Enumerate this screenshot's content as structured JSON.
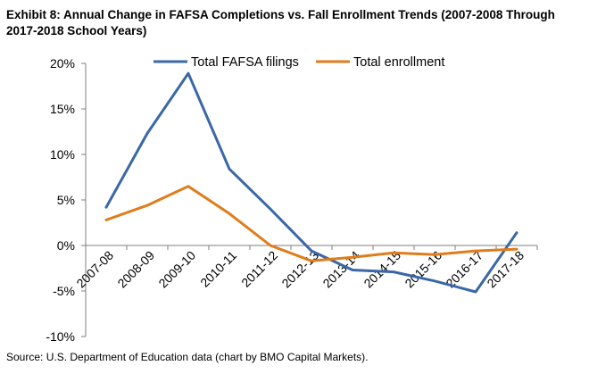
{
  "title": "Exhibit 8: Annual Change in FAFSA Completions vs. Fall Enrollment Trends (2007-2008 Through 2017-2018 School Years)",
  "source": "Source: U.S. Department of Education data (chart by BMO Capital Markets).",
  "chart_data": {
    "type": "line",
    "categories": [
      "2007-08",
      "2008-09",
      "2009-10",
      "2010-11",
      "2011-12",
      "2012-13",
      "2013-14",
      "2014-15",
      "2015-16",
      "2016-17",
      "2017-18"
    ],
    "series": [
      {
        "name": "Total FAFSA filings",
        "color": "#3A67A8",
        "values": [
          4.2,
          12.3,
          18.9,
          8.4,
          4.0,
          -0.6,
          -2.7,
          -2.9,
          -3.9,
          -5.1,
          1.4
        ]
      },
      {
        "name": "Total enrollment",
        "color": "#E07C1A",
        "values": [
          2.8,
          4.4,
          6.5,
          3.5,
          0.0,
          -1.7,
          -1.3,
          -0.8,
          -1.0,
          -0.6,
          -0.4
        ]
      }
    ],
    "ylim": [
      -10,
      20
    ],
    "yticks": [
      "-10%",
      "-5%",
      "0%",
      "5%",
      "10%",
      "15%",
      "20%"
    ],
    "ytick_values": [
      -10,
      -5,
      0,
      5,
      10,
      15,
      20
    ],
    "legend_position": "top",
    "grid": false,
    "xlabel": "",
    "ylabel": ""
  }
}
